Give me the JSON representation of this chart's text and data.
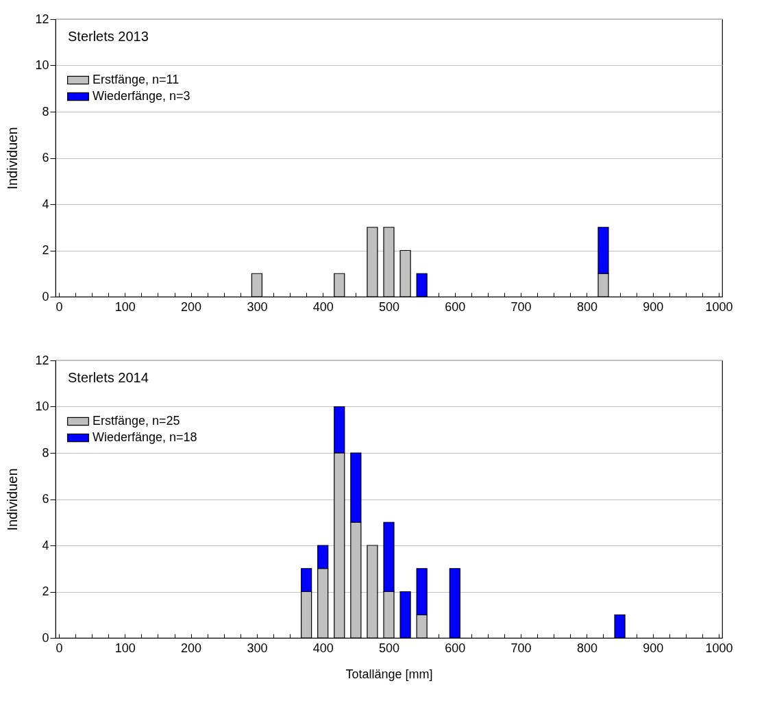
{
  "chart_data": [
    {
      "type": "bar",
      "title": "Sterlets 2013",
      "ylabel": "Individuen",
      "stacked": true,
      "grid": "y",
      "legend": "top left",
      "x": [
        300,
        425,
        475,
        500,
        525,
        550,
        825
      ],
      "series": [
        {
          "name": "Erstfänge, n=11",
          "color": "#c0c0c0",
          "values": [
            1,
            1,
            3,
            3,
            2,
            null,
            1
          ]
        },
        {
          "name": "Wiederfänge, n=3",
          "color": "#0000ff",
          "values": [
            null,
            null,
            null,
            null,
            null,
            1,
            2
          ]
        }
      ],
      "xlim": [
        0,
        1000
      ],
      "xticks": [
        0,
        {
          "value": 25,
          "label": null
        },
        {
          "value": 50,
          "label": null
        },
        {
          "value": 75,
          "label": null
        },
        100,
        {
          "value": 125,
          "label": null
        },
        {
          "value": 150,
          "label": null
        },
        {
          "value": 175,
          "label": null
        },
        200,
        {
          "value": 225,
          "label": null
        },
        {
          "value": 250,
          "label": null
        },
        {
          "value": 275,
          "label": null
        },
        300,
        {
          "value": 325,
          "label": null
        },
        {
          "value": 350,
          "label": null
        },
        {
          "value": 375,
          "label": null
        },
        400,
        {
          "value": 425,
          "label": null
        },
        {
          "value": 450,
          "label": null
        },
        {
          "value": 475,
          "label": null
        },
        500,
        {
          "value": 525,
          "label": null
        },
        {
          "value": 550,
          "label": null
        },
        {
          "value": 575,
          "label": null
        },
        600,
        {
          "value": 625,
          "label": null
        },
        {
          "value": 650,
          "label": null
        },
        {
          "value": 675,
          "label": null
        },
        700,
        {
          "value": 725,
          "label": null
        },
        {
          "value": 750,
          "label": null
        },
        {
          "value": 775,
          "label": null
        },
        800,
        {
          "value": 825,
          "label": null
        },
        {
          "value": 850,
          "label": null
        },
        {
          "value": 875,
          "label": null
        },
        900,
        {
          "value": 925,
          "label": null
        },
        {
          "value": 950,
          "label": null
        },
        {
          "value": 975,
          "label": null
        },
        1000
      ],
      "ylim": [
        0,
        12
      ],
      "yticks": [
        0,
        2,
        4,
        6,
        8,
        10,
        12
      ]
    },
    {
      "type": "bar",
      "title": "Sterlets 2014",
      "xlabel": "Totallänge [mm]",
      "ylabel": "Individuen",
      "stacked": true,
      "grid": "y",
      "legend": "top left",
      "x": [
        375,
        400,
        425,
        450,
        475,
        500,
        525,
        550,
        600,
        850
      ],
      "series": [
        {
          "name": "Erstfänge, n=25",
          "color": "#c0c0c0",
          "values": [
            2,
            3,
            8,
            5,
            4,
            2,
            null,
            1,
            null,
            null
          ]
        },
        {
          "name": "Wiederfänge, n=18",
          "color": "#0000ff",
          "values": [
            1,
            1,
            2,
            3,
            null,
            3,
            2,
            2,
            3,
            1
          ]
        }
      ],
      "xlim": [
        0,
        1000
      ],
      "xticks": [
        0,
        {
          "value": 25,
          "label": null
        },
        {
          "value": 50,
          "label": null
        },
        {
          "value": 75,
          "label": null
        },
        100,
        {
          "value": 125,
          "label": null
        },
        {
          "value": 150,
          "label": null
        },
        {
          "value": 175,
          "label": null
        },
        200,
        {
          "value": 225,
          "label": null
        },
        {
          "value": 250,
          "label": null
        },
        {
          "value": 275,
          "label": null
        },
        300,
        {
          "value": 325,
          "label": null
        },
        {
          "value": 350,
          "label": null
        },
        {
          "value": 375,
          "label": null
        },
        400,
        {
          "value": 425,
          "label": null
        },
        {
          "value": 450,
          "label": null
        },
        {
          "value": 475,
          "label": null
        },
        500,
        {
          "value": 525,
          "label": null
        },
        {
          "value": 550,
          "label": null
        },
        {
          "value": 575,
          "label": null
        },
        600,
        {
          "value": 625,
          "label": null
        },
        {
          "value": 650,
          "label": null
        },
        {
          "value": 675,
          "label": null
        },
        700,
        {
          "value": 725,
          "label": null
        },
        {
          "value": 750,
          "label": null
        },
        {
          "value": 775,
          "label": null
        },
        800,
        {
          "value": 825,
          "label": null
        },
        {
          "value": 850,
          "label": null
        },
        {
          "value": 875,
          "label": null
        },
        900,
        {
          "value": 925,
          "label": null
        },
        {
          "value": 950,
          "label": null
        },
        {
          "value": 975,
          "label": null
        },
        1000
      ],
      "ylim": [
        0,
        12
      ],
      "yticks": [
        0,
        2,
        4,
        6,
        8,
        10,
        12
      ]
    }
  ]
}
